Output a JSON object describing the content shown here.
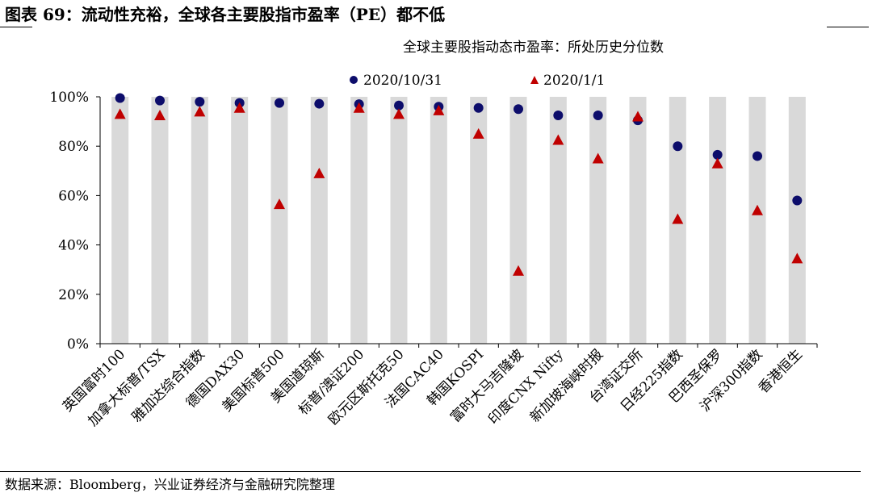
{
  "figure": {
    "title": "图表 69：流动性充裕，全球各主要股指市盈率（PE）都不低",
    "source": "数据来源：Bloomberg，兴业证券经济与金融研究院整理"
  },
  "chart_data": {
    "type": "scatter",
    "title": "全球主要股指动态市盈率：所处历史分位数",
    "categories": [
      "英国富时100",
      "加拿大标普/TSX",
      "雅加达综合指数",
      "德国DAX30",
      "美国标普500",
      "美国道琼斯",
      "标普/澳证200",
      "欧元区斯托克50",
      "法国CAC40",
      "韩国KOSPI",
      "富时大马吉隆坡",
      "印度CNX Nifty",
      "新加坡海峡时报",
      "台湾证交所",
      "日经225指数",
      "巴西圣保罗",
      "沪深300指数",
      "香港恒生"
    ],
    "series": [
      {
        "name": "2020/10/31",
        "marker": "circle",
        "color": "#0d0d6b",
        "values": [
          99.5,
          98.5,
          98,
          97.5,
          97.5,
          97.2,
          97,
          96.5,
          96,
          95.5,
          95,
          92.5,
          92.5,
          90.5,
          80,
          76.5,
          76,
          58
        ]
      },
      {
        "name": "2020/1/1",
        "marker": "triangle",
        "color": "#c00000",
        "values": [
          93,
          92.5,
          94,
          95.5,
          56.5,
          69,
          95.5,
          93,
          94.5,
          85,
          29.5,
          82.5,
          75,
          92,
          50.5,
          73,
          54,
          34.5
        ]
      }
    ],
    "bar_range": [
      0,
      100
    ],
    "bar_color": "#d9d9d9",
    "ylim": [
      0,
      100
    ],
    "yticks": [
      0,
      20,
      40,
      60,
      80,
      100
    ],
    "ytick_labels": [
      "0%",
      "20%",
      "40%",
      "60%",
      "80%",
      "100%"
    ],
    "legend_position": "top",
    "grid": false
  }
}
